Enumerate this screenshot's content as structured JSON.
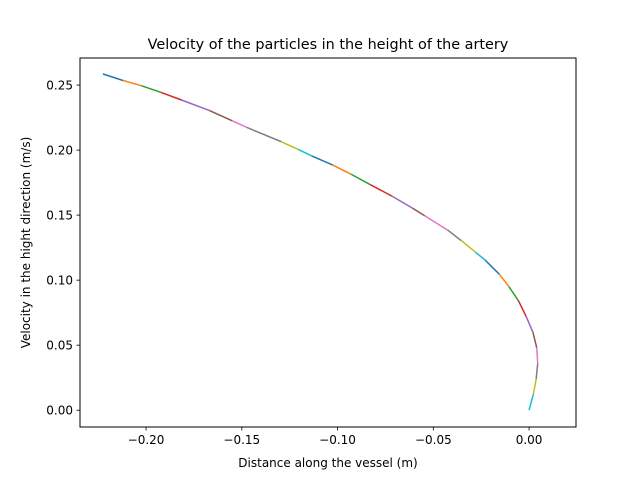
{
  "chart_data": {
    "type": "line",
    "title": "Velocity of the particles in the height of the artery",
    "xlabel": "Distance along the vessel (m)",
    "ylabel": "Velocity in the hight direction (m/s)",
    "xlim": [
      -0.2345,
      0.0245
    ],
    "ylim": [
      -0.0129,
      0.2708
    ],
    "xticks": [
      -0.2,
      -0.15,
      -0.1,
      -0.05,
      0.0
    ],
    "xtick_labels": [
      "−0.20",
      "−0.15",
      "−0.10",
      "−0.05",
      "0.00"
    ],
    "yticks": [
      0.0,
      0.05,
      0.1,
      0.15,
      0.2,
      0.25
    ],
    "ytick_labels": [
      "0.00",
      "0.05",
      "0.10",
      "0.15",
      "0.20",
      "0.25"
    ],
    "grid": false,
    "legend": "none",
    "colors": [
      "#1f77b4",
      "#ff7f0e",
      "#2ca02c",
      "#d62728",
      "#9467bd",
      "#8c564b",
      "#e377c2",
      "#7f7f7f",
      "#bcbd22",
      "#17becf"
    ],
    "series": [
      {
        "x": [
          -0.2225,
          -0.212
        ],
        "y": [
          0.2585,
          0.2535
        ]
      },
      {
        "x": [
          -0.212,
          -0.2025
        ],
        "y": [
          0.2535,
          0.2495
        ]
      },
      {
        "x": [
          -0.2025,
          -0.1925
        ],
        "y": [
          0.2495,
          0.2445
        ]
      },
      {
        "x": [
          -0.1925,
          -0.1815
        ],
        "y": [
          0.2445,
          0.2385
        ]
      },
      {
        "x": [
          -0.1815,
          -0.167
        ],
        "y": [
          0.2385,
          0.2305
        ]
      },
      {
        "x": [
          -0.167,
          -0.155
        ],
        "y": [
          0.2305,
          0.2225
        ]
      },
      {
        "x": [
          -0.155,
          -0.1475
        ],
        "y": [
          0.2225,
          0.2175
        ]
      },
      {
        "x": [
          -0.1475,
          -0.1295
        ],
        "y": [
          0.2175,
          0.2065
        ]
      },
      {
        "x": [
          -0.1295,
          -0.1205
        ],
        "y": [
          0.2065,
          0.2005
        ]
      },
      {
        "x": [
          -0.1205,
          -0.1135
        ],
        "y": [
          0.2005,
          0.1955
        ]
      },
      {
        "x": [
          -0.1135,
          -0.1025
        ],
        "y": [
          0.1955,
          0.1885
        ]
      },
      {
        "x": [
          -0.1025,
          -0.093
        ],
        "y": [
          0.1885,
          0.1815
        ]
      },
      {
        "x": [
          -0.093,
          -0.083
        ],
        "y": [
          0.1815,
          0.1735
        ]
      },
      {
        "x": [
          -0.083,
          -0.0715
        ],
        "y": [
          0.1735,
          0.1645
        ]
      },
      {
        "x": [
          -0.0715,
          -0.061
        ],
        "y": [
          0.1645,
          0.1555
        ]
      },
      {
        "x": [
          -0.061,
          -0.0545
        ],
        "y": [
          0.1555,
          0.1495
        ]
      },
      {
        "x": [
          -0.0545,
          -0.0425
        ],
        "y": [
          0.1495,
          0.1385
        ]
      },
      {
        "x": [
          -0.0425,
          -0.0355
        ],
        "y": [
          0.1385,
          0.1305
        ]
      },
      {
        "x": [
          -0.0355,
          -0.028
        ],
        "y": [
          0.1305,
          0.1215
        ]
      },
      {
        "x": [
          -0.028,
          -0.023
        ],
        "y": [
          0.1215,
          0.1155
        ]
      },
      {
        "x": [
          -0.023,
          -0.0155
        ],
        "y": [
          0.1155,
          0.1045
        ]
      },
      {
        "x": [
          -0.0155,
          -0.0105
        ],
        "y": [
          0.1045,
          0.095
        ]
      },
      {
        "x": [
          -0.0105,
          -0.0055
        ],
        "y": [
          0.095,
          0.084
        ]
      },
      {
        "x": [
          -0.0055,
          -0.0015
        ],
        "y": [
          0.084,
          0.072
        ]
      },
      {
        "x": [
          -0.0015,
          0.002
        ],
        "y": [
          0.072,
          0.06
        ]
      },
      {
        "x": [
          0.002,
          0.004
        ],
        "y": [
          0.06,
          0.048
        ]
      },
      {
        "x": [
          0.004,
          0.0045
        ],
        "y": [
          0.048,
          0.036
        ]
      },
      {
        "x": [
          0.0045,
          0.0037
        ],
        "y": [
          0.036,
          0.024
        ]
      },
      {
        "x": [
          0.0037,
          0.0022
        ],
        "y": [
          0.024,
          0.012
        ]
      },
      {
        "x": [
          0.0022,
          0.0
        ],
        "y": [
          0.012,
          0.0
        ]
      }
    ]
  }
}
